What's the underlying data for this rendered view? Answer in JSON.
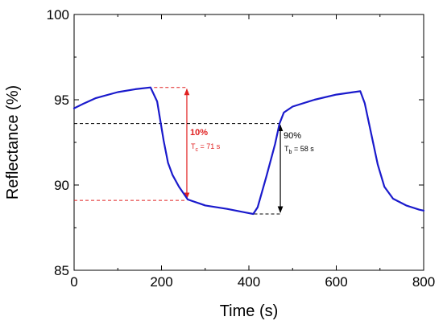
{
  "chart_data": {
    "type": "line",
    "title": "",
    "xlabel": "Time (s)",
    "ylabel": "Reflectance (%)",
    "xlim": [
      0,
      800
    ],
    "ylim": [
      85,
      100
    ],
    "xticks": [
      "0",
      "200",
      "400",
      "600",
      "800"
    ],
    "yticks": [
      "85",
      "90",
      "95",
      "100"
    ],
    "grid": false,
    "legend": "none",
    "series": [
      {
        "color": "#1a1acc",
        "points": [
          [
            0,
            94.5
          ],
          [
            20,
            94.75
          ],
          [
            50,
            95.1
          ],
          [
            100,
            95.45
          ],
          [
            140,
            95.62
          ],
          [
            175,
            95.72
          ],
          [
            190,
            94.9
          ],
          [
            205,
            92.6
          ],
          [
            215,
            91.3
          ],
          [
            225,
            90.6
          ],
          [
            240,
            89.9
          ],
          [
            260,
            89.15
          ],
          [
            300,
            88.8
          ],
          [
            350,
            88.6
          ],
          [
            390,
            88.4
          ],
          [
            410,
            88.3
          ],
          [
            420,
            88.7
          ],
          [
            440,
            90.5
          ],
          [
            460,
            92.4
          ],
          [
            470,
            93.6
          ],
          [
            480,
            94.25
          ],
          [
            500,
            94.6
          ],
          [
            550,
            95.0
          ],
          [
            600,
            95.3
          ],
          [
            640,
            95.45
          ],
          [
            655,
            95.5
          ],
          [
            665,
            94.8
          ],
          [
            680,
            93.0
          ],
          [
            695,
            91.2
          ],
          [
            710,
            89.9
          ],
          [
            730,
            89.2
          ],
          [
            760,
            88.8
          ],
          [
            790,
            88.55
          ],
          [
            800,
            88.5
          ]
        ]
      }
    ],
    "annotations": {
      "color_red": "#e02020",
      "color_black": "#000000",
      "red_upper_y": 95.72,
      "red_lower_y": 89.1,
      "red_line_x": [
        183,
        258
      ],
      "red_arrow_x": 258,
      "red_pct_label": "10%",
      "red_time_symbol": "T",
      "red_time_sub": "c",
      "red_time_value": " = 71 s",
      "black_upper_y": 93.6,
      "black_lower_y": 88.3,
      "black_line_x": [
        412,
        472
      ],
      "black_arrow_x": 472,
      "black_pct_label": "90%",
      "black_time_symbol": "T",
      "black_time_sub": "b",
      "black_time_value": " = 58 s"
    }
  }
}
